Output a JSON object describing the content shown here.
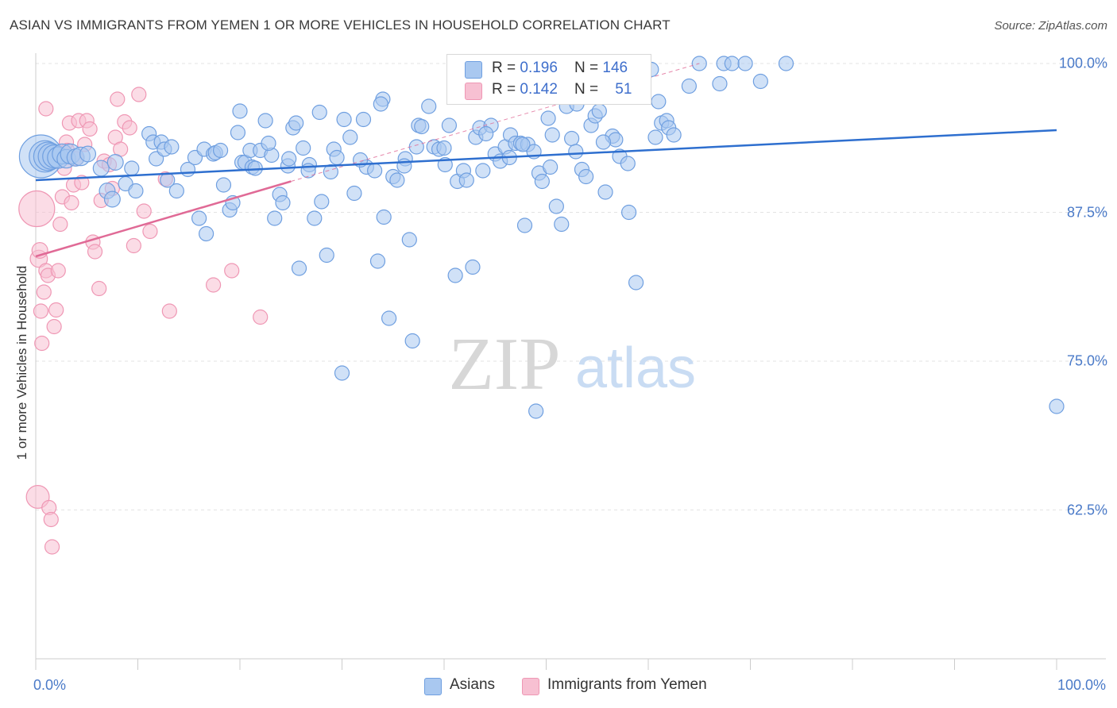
{
  "header": {
    "title": "ASIAN VS IMMIGRANTS FROM YEMEN 1 OR MORE VEHICLES IN HOUSEHOLD CORRELATION CHART",
    "source": "Source: ZipAtlas.com"
  },
  "watermark": {
    "zip": "ZIP",
    "atlas": "atlas"
  },
  "colors": {
    "asian_fill": "#a9c8f0",
    "asian_stroke": "#6f9fe0",
    "asian_line": "#2e6fcf",
    "yemen_fill": "#f7c0d2",
    "yemen_stroke": "#ef97b4",
    "yemen_line": "#e06a96",
    "tick_text": "#4a7ac8",
    "grid": "#e3e3e3"
  },
  "legend": {
    "rows": [
      {
        "r_label": "R = ",
        "r_value": "0.196",
        "n_label": "N = ",
        "n_value": "146"
      },
      {
        "r_label": "R = ",
        "r_value": "0.142",
        "n_label": "N = ",
        "n_value": "51"
      }
    ]
  },
  "bottom_legend": {
    "asians": "Asians",
    "yemen": "Immigrants from Yemen"
  },
  "chart_data": {
    "type": "scatter",
    "title": "ASIAN VS IMMIGRANTS FROM YEMEN 1 OR MORE VEHICLES IN HOUSEHOLD CORRELATION CHART",
    "xlabel": "",
    "ylabel": "1 or more Vehicles in Household",
    "xlim": [
      0,
      100
    ],
    "ylim": [
      50,
      101.2
    ],
    "x_tick_labels": [
      "0.0%",
      "100.0%"
    ],
    "y_ticks": [
      {
        "value": 100.0,
        "label": "100.0%"
      },
      {
        "value": 87.5,
        "label": "87.5%"
      },
      {
        "value": 75.0,
        "label": "75.0%"
      },
      {
        "value": 62.5,
        "label": "62.5%"
      }
    ],
    "grid": true,
    "series": [
      {
        "name": "Asians",
        "r": 0.196,
        "n": 146,
        "trend": {
          "x": [
            0,
            100
          ],
          "y": [
            90.2,
            94.4
          ]
        },
        "points": [
          [
            0.5,
            92.2,
            3
          ],
          [
            0.9,
            92.2,
            2.2
          ],
          [
            1.2,
            92.2,
            2
          ],
          [
            1.5,
            92.2,
            1.8
          ],
          [
            1.8,
            92.2,
            1.6
          ],
          [
            2.2,
            92.1,
            1.5
          ],
          [
            2.6,
            92.4,
            1.4
          ],
          [
            3.0,
            92.0,
            1.3
          ],
          [
            3.4,
            92.4,
            1.4
          ],
          [
            3.9,
            92.1,
            1.2
          ],
          [
            4.4,
            92.2,
            1.3
          ],
          [
            5.1,
            92.4,
            1.1
          ],
          [
            6.4,
            91.2,
            1.1
          ],
          [
            7.0,
            89.3,
            1.1
          ],
          [
            7.8,
            91.7,
            1.1
          ],
          [
            7.5,
            88.6,
            1.1
          ],
          [
            8.8,
            89.9,
            1
          ],
          [
            9.4,
            91.2,
            1
          ],
          [
            9.8,
            89.3,
            1
          ],
          [
            11.1,
            94.1,
            1
          ],
          [
            11.5,
            93.4,
            1
          ],
          [
            12.3,
            93.4,
            1
          ],
          [
            11.8,
            92.0,
            1
          ],
          [
            12.6,
            92.8,
            1
          ],
          [
            13.3,
            93.0,
            1
          ],
          [
            12.9,
            90.2,
            1
          ],
          [
            13.8,
            89.3,
            1
          ],
          [
            14.9,
            91.1,
            1
          ],
          [
            15.6,
            92.1,
            1
          ],
          [
            16.0,
            87.0,
            1
          ],
          [
            16.5,
            92.8,
            1
          ],
          [
            16.7,
            85.7,
            1
          ],
          [
            17.4,
            92.4,
            1
          ],
          [
            17.6,
            92.5,
            1
          ],
          [
            18.1,
            92.7,
            1
          ],
          [
            18.4,
            89.8,
            1
          ],
          [
            19.0,
            87.7,
            1
          ],
          [
            19.3,
            88.3,
            1
          ],
          [
            19.8,
            94.2,
            1
          ],
          [
            20.2,
            91.7,
            1
          ],
          [
            20.5,
            91.7,
            1
          ],
          [
            21.0,
            92.7,
            1
          ],
          [
            21.2,
            91.3,
            1
          ],
          [
            21.5,
            91.2,
            1
          ],
          [
            22.0,
            92.7,
            1
          ],
          [
            22.5,
            95.2,
            1
          ],
          [
            23.1,
            92.3,
            1
          ],
          [
            23.4,
            87.0,
            1
          ],
          [
            23.9,
            89.0,
            1
          ],
          [
            24.2,
            88.3,
            1
          ],
          [
            24.7,
            91.4,
            1
          ],
          [
            25.2,
            94.6,
            1
          ],
          [
            25.8,
            82.8,
            1
          ],
          [
            26.2,
            92.9,
            1
          ],
          [
            26.8,
            91.5,
            1
          ],
          [
            27.3,
            87.0,
            1
          ],
          [
            27.8,
            95.9,
            1
          ],
          [
            28.0,
            88.4,
            1
          ],
          [
            28.5,
            83.9,
            1
          ],
          [
            29.2,
            92.8,
            1
          ],
          [
            29.5,
            92.1,
            1
          ],
          [
            30.2,
            95.3,
            1
          ],
          [
            30.8,
            93.8,
            1
          ],
          [
            31.2,
            89.1,
            1
          ],
          [
            32.1,
            95.3,
            1
          ],
          [
            32.4,
            91.3,
            1
          ],
          [
            33.2,
            91.0,
            1
          ],
          [
            33.5,
            83.4,
            1
          ],
          [
            34.1,
            87.1,
            1
          ],
          [
            34.6,
            78.6,
            1
          ],
          [
            35.0,
            90.5,
            1
          ],
          [
            35.4,
            90.2,
            1
          ],
          [
            36.2,
            92.0,
            1
          ],
          [
            36.6,
            85.2,
            1
          ],
          [
            36.9,
            76.7,
            1
          ],
          [
            37.5,
            94.8,
            1
          ],
          [
            37.8,
            94.7,
            1
          ],
          [
            38.5,
            96.4,
            1
          ],
          [
            39.0,
            93.0,
            1
          ],
          [
            39.5,
            92.8,
            1
          ],
          [
            40.1,
            91.5,
            1
          ],
          [
            40.5,
            94.8,
            1
          ],
          [
            41.1,
            82.2,
            1
          ],
          [
            41.3,
            90.1,
            1
          ],
          [
            41.9,
            91.0,
            1
          ],
          [
            42.2,
            90.2,
            1
          ],
          [
            42.8,
            82.9,
            1
          ],
          [
            43.1,
            93.8,
            1
          ],
          [
            43.5,
            94.6,
            1
          ],
          [
            43.8,
            91.0,
            1
          ],
          [
            44.6,
            94.8,
            1
          ],
          [
            45.0,
            92.4,
            1
          ],
          [
            45.5,
            91.8,
            1
          ],
          [
            46.0,
            93.0,
            1
          ],
          [
            46.5,
            94.0,
            1
          ],
          [
            47.0,
            93.3,
            1
          ],
          [
            47.5,
            93.3,
            1
          ],
          [
            47.9,
            86.4,
            1
          ],
          [
            48.2,
            93.2,
            1
          ],
          [
            48.8,
            92.6,
            1
          ],
          [
            49.3,
            90.8,
            1
          ],
          [
            49.6,
            90.1,
            1
          ],
          [
            50.2,
            95.4,
            1
          ],
          [
            50.6,
            94.0,
            1
          ],
          [
            51.0,
            88.0,
            1
          ],
          [
            51.5,
            86.5,
            1
          ],
          [
            52.0,
            96.4,
            1
          ],
          [
            52.5,
            93.7,
            1
          ],
          [
            53.0,
            96.6,
            1
          ],
          [
            53.5,
            91.1,
            1
          ],
          [
            53.9,
            90.5,
            1
          ],
          [
            54.4,
            94.8,
            1
          ],
          [
            54.8,
            95.6,
            1
          ],
          [
            55.2,
            96.0,
            1
          ],
          [
            55.8,
            89.2,
            1
          ],
          [
            56.5,
            93.9,
            1
          ],
          [
            56.8,
            93.6,
            1
          ],
          [
            57.2,
            92.2,
            1
          ],
          [
            58.1,
            87.5,
            1
          ],
          [
            58.5,
            97.8,
            1
          ],
          [
            58.8,
            81.6,
            1
          ],
          [
            60.3,
            99.5,
            1
          ],
          [
            60.7,
            93.8,
            1
          ],
          [
            61.0,
            96.8,
            1
          ],
          [
            61.3,
            95.0,
            1
          ],
          [
            61.8,
            95.2,
            1
          ],
          [
            62.0,
            94.6,
            1
          ],
          [
            62.5,
            94.0,
            1
          ],
          [
            64.0,
            98.1,
            1
          ],
          [
            65.0,
            100.0,
            1
          ],
          [
            67.0,
            98.3,
            1
          ],
          [
            67.4,
            100.0,
            1
          ],
          [
            68.2,
            100.0,
            1
          ],
          [
            69.5,
            100.0,
            1
          ],
          [
            71.0,
            98.5,
            1
          ],
          [
            73.5,
            100.0,
            1
          ],
          [
            34.0,
            97.0,
            1
          ],
          [
            20.0,
            96.0,
            1
          ],
          [
            25.5,
            95.0,
            1
          ],
          [
            30.0,
            74.0,
            1
          ],
          [
            49.0,
            70.8,
            1
          ],
          [
            100.0,
            71.2,
            1
          ],
          [
            33.8,
            96.6,
            1
          ],
          [
            36.1,
            91.4,
            1
          ],
          [
            24.8,
            92.0,
            1
          ],
          [
            26.7,
            91.0,
            1
          ],
          [
            47.7,
            93.2,
            1
          ],
          [
            40.0,
            92.9,
            1
          ],
          [
            44.1,
            94.1,
            1
          ],
          [
            52.9,
            92.6,
            1
          ],
          [
            55.6,
            93.4,
            1
          ],
          [
            58.0,
            91.6,
            1
          ],
          [
            50.4,
            91.3,
            1
          ],
          [
            46.4,
            92.1,
            1
          ],
          [
            22.8,
            93.3,
            1
          ],
          [
            28.9,
            90.9,
            1
          ],
          [
            37.3,
            93.0,
            1
          ],
          [
            31.8,
            91.9,
            1
          ]
        ]
      },
      {
        "name": "Immigrants from Yemen",
        "r": 0.142,
        "n": 51,
        "trend": {
          "x": [
            0,
            25
          ],
          "y": [
            83.8,
            90.1
          ]
        },
        "trend_extended": {
          "x": [
            25,
            65
          ],
          "y": [
            90.1,
            100.0
          ]
        },
        "points": [
          [
            0.1,
            87.8,
            2.5
          ],
          [
            0.2,
            63.6,
            1.6
          ],
          [
            0.3,
            83.6,
            1.2
          ],
          [
            0.4,
            84.3,
            1.1
          ],
          [
            0.5,
            79.2,
            1
          ],
          [
            0.6,
            76.5,
            1
          ],
          [
            0.8,
            80.8,
            1
          ],
          [
            1.0,
            82.6,
            1
          ],
          [
            1.2,
            82.2,
            1
          ],
          [
            1.3,
            62.7,
            1
          ],
          [
            1.5,
            61.7,
            1
          ],
          [
            1.6,
            59.4,
            1
          ],
          [
            1.8,
            77.9,
            1
          ],
          [
            2.0,
            79.3,
            1
          ],
          [
            2.2,
            82.6,
            1
          ],
          [
            2.4,
            86.5,
            1
          ],
          [
            2.6,
            88.8,
            1
          ],
          [
            2.8,
            91.2,
            1
          ],
          [
            3.0,
            93.4,
            1
          ],
          [
            3.1,
            92.7,
            1
          ],
          [
            3.3,
            95.0,
            1
          ],
          [
            3.5,
            88.3,
            1
          ],
          [
            3.7,
            89.8,
            1
          ],
          [
            4.0,
            92.0,
            1
          ],
          [
            4.2,
            95.2,
            1
          ],
          [
            4.5,
            90.0,
            1
          ],
          [
            4.8,
            93.2,
            1
          ],
          [
            5.0,
            95.2,
            1
          ],
          [
            5.3,
            94.5,
            1
          ],
          [
            5.6,
            85.0,
            1
          ],
          [
            5.8,
            84.2,
            1
          ],
          [
            6.2,
            81.1,
            1
          ],
          [
            6.4,
            88.5,
            1
          ],
          [
            6.7,
            91.8,
            1
          ],
          [
            7.2,
            91.5,
            1
          ],
          [
            7.5,
            89.5,
            1
          ],
          [
            7.8,
            93.8,
            1
          ],
          [
            8.0,
            97.0,
            1
          ],
          [
            8.3,
            92.8,
            1
          ],
          [
            8.7,
            95.1,
            1
          ],
          [
            9.2,
            94.6,
            1
          ],
          [
            9.6,
            84.7,
            1
          ],
          [
            10.1,
            97.4,
            1
          ],
          [
            10.6,
            87.6,
            1
          ],
          [
            11.2,
            85.9,
            1
          ],
          [
            12.7,
            90.3,
            1
          ],
          [
            13.1,
            79.2,
            1
          ],
          [
            17.4,
            81.4,
            1
          ],
          [
            19.2,
            82.6,
            1
          ],
          [
            22.0,
            78.7,
            1
          ],
          [
            1.0,
            96.2,
            1
          ]
        ]
      }
    ]
  }
}
